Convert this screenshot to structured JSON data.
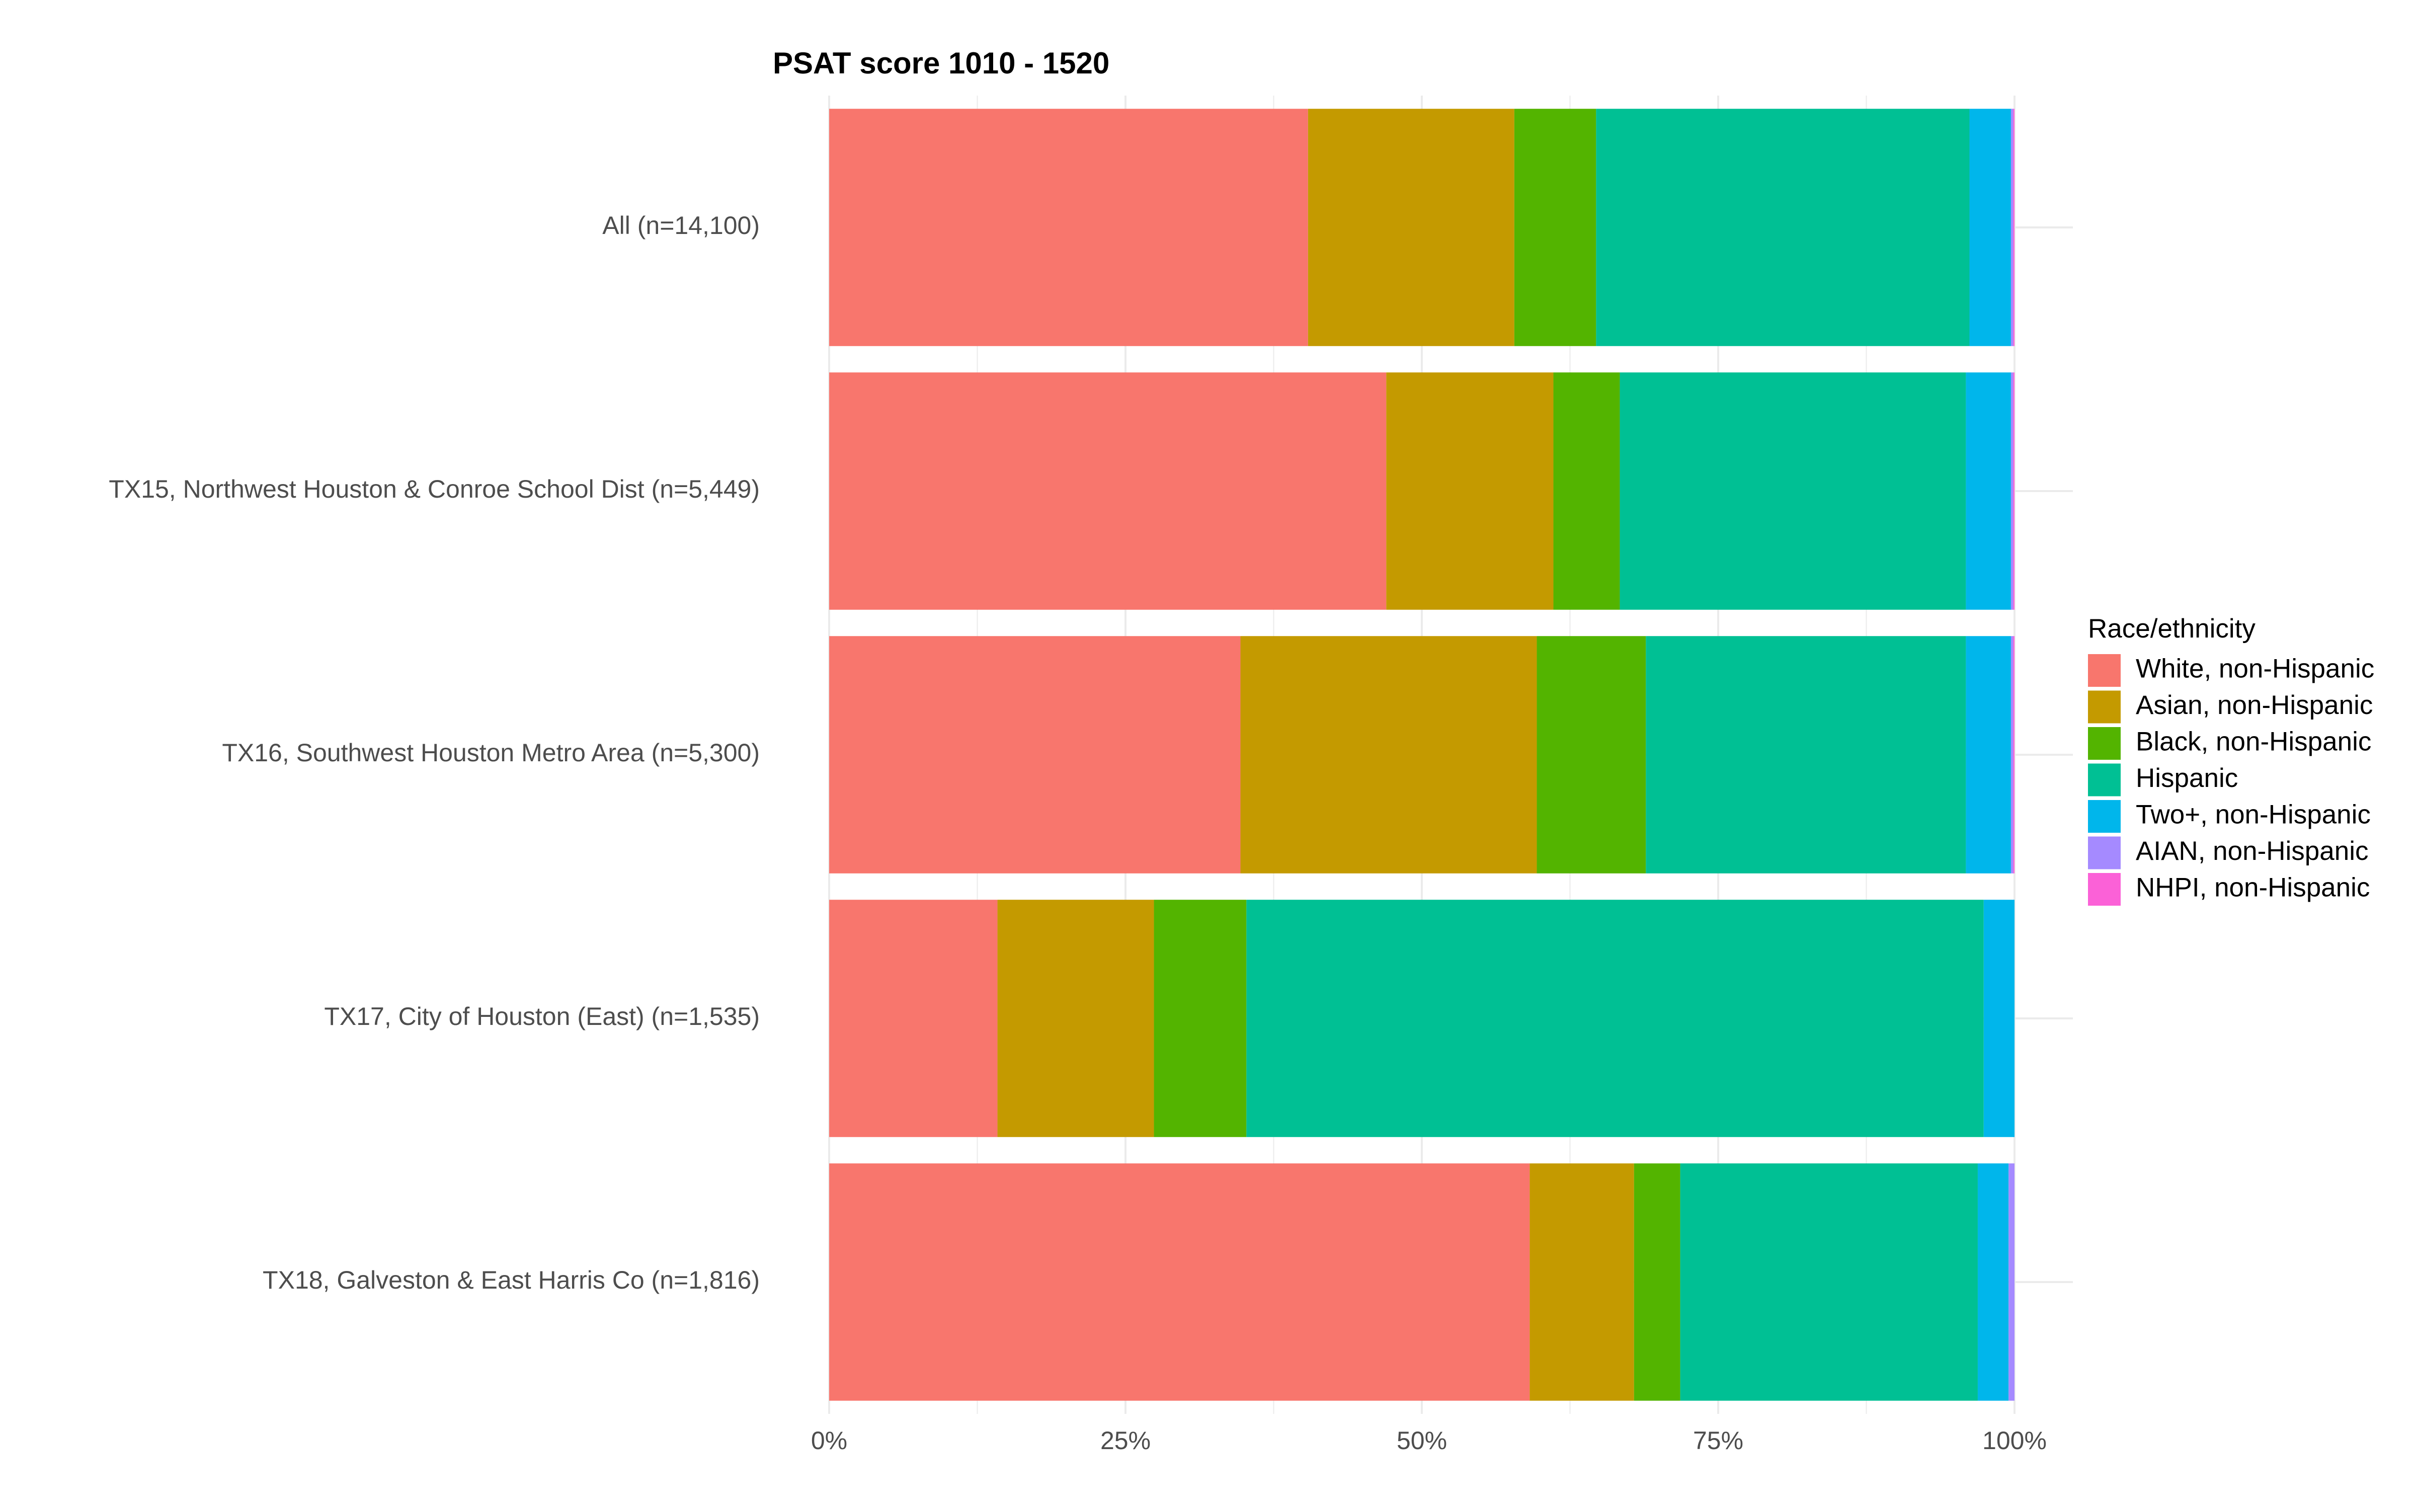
{
  "chart_data": {
    "type": "bar",
    "orientation": "horizontal",
    "stacked": "percent",
    "title": "PSAT score 1010 - 1520",
    "xlabel": "",
    "ylabel": "",
    "xlim": [
      0,
      100
    ],
    "x_ticks": [
      "0%",
      "25%",
      "50%",
      "75%",
      "100%"
    ],
    "grid": true,
    "legend_position": "right",
    "legend_title": "Race/ethnicity",
    "categories": [
      "All (n=14,100)",
      "TX15, Northwest Houston & Conroe School Dist (n=5,449)",
      "TX16, Southwest Houston Metro Area (n=5,300)",
      "TX17, City of Houston (East) (n=1,535)",
      "TX18, Galveston & East Harris Co (n=1,816)"
    ],
    "series": [
      {
        "name": "White, non-Hispanic",
        "color": "#F8766D",
        "values": [
          40.4,
          47.0,
          34.7,
          14.2,
          59.1
        ]
      },
      {
        "name": "Asian, non-Hispanic",
        "color": "#C49A00",
        "values": [
          17.4,
          14.1,
          25.0,
          13.2,
          8.8
        ]
      },
      {
        "name": "Black, non-Hispanic",
        "color": "#53B400",
        "values": [
          6.9,
          5.6,
          9.2,
          7.8,
          3.9
        ]
      },
      {
        "name": "Hispanic",
        "color": "#00C094",
        "values": [
          31.5,
          29.2,
          27.0,
          62.2,
          25.1
        ]
      },
      {
        "name": "Two+, non-Hispanic",
        "color": "#00B6EB",
        "values": [
          3.5,
          3.8,
          3.8,
          2.6,
          2.6
        ]
      },
      {
        "name": "AIAN, non-Hispanic",
        "color": "#A58AFF",
        "values": [
          0.2,
          0.2,
          0.2,
          0.0,
          0.5
        ]
      },
      {
        "name": "NHPI, non-Hispanic",
        "color": "#FB61D7",
        "values": [
          0.1,
          0.1,
          0.1,
          0.0,
          0.0
        ]
      }
    ]
  }
}
